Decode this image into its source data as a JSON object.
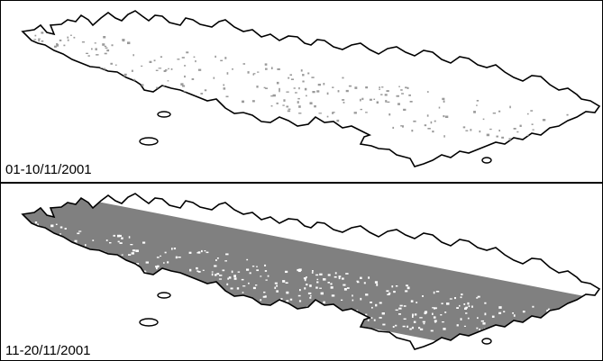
{
  "panels": [
    {
      "label": "01-10/11/2001"
    },
    {
      "label": "11-20/11/2001"
    }
  ]
}
